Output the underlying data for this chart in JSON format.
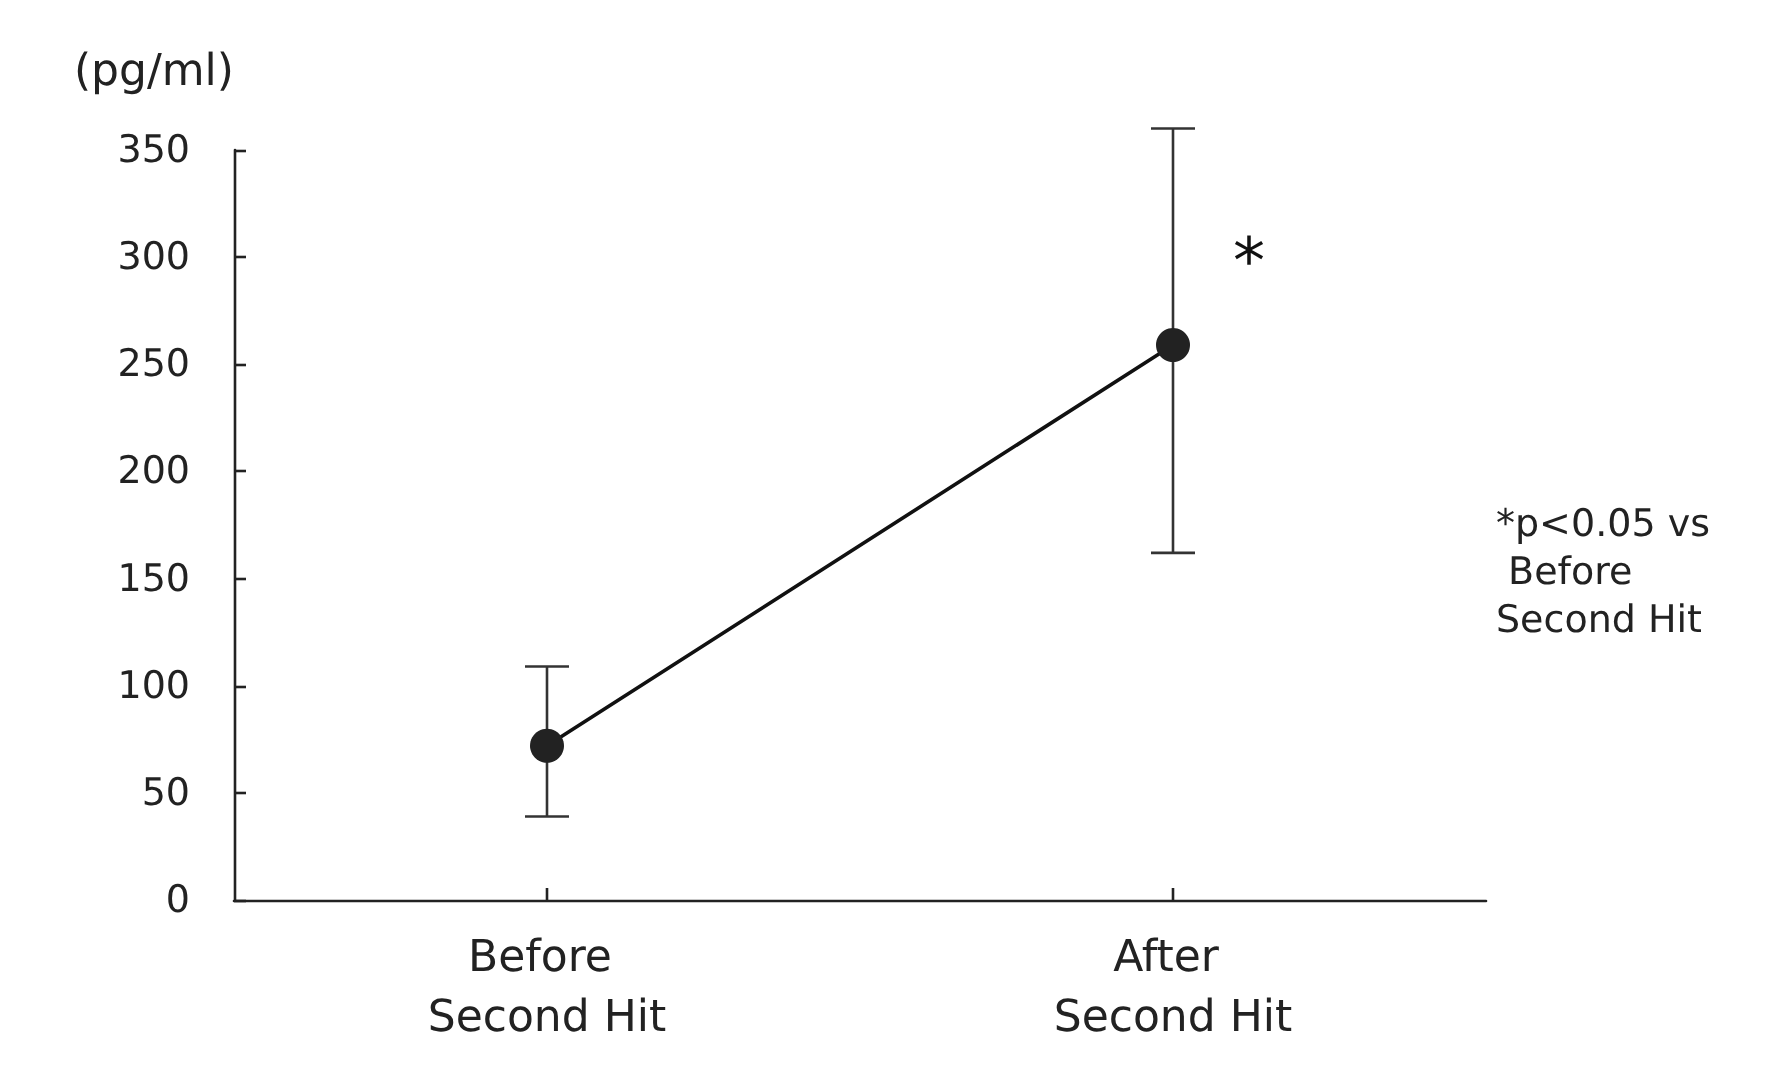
{
  "chart_data": {
    "type": "line",
    "ylabel": "(pg/ml)",
    "categories": [
      "Before Second Hit",
      "After Second Hit"
    ],
    "series": [
      {
        "color": "#222222",
        "values": [
          72,
          259
        ],
        "errors": [
          [
            39,
            109
          ],
          [
            162,
            360
          ]
        ]
      }
    ],
    "ylim": [
      0,
      350
    ],
    "yticks": [
      0,
      50,
      100,
      150,
      200,
      250,
      300,
      350
    ],
    "grid": false,
    "marker": "circle",
    "line_style": "solid",
    "annotations": [
      {
        "text": "*",
        "x": "After Second Hit",
        "y": 300
      },
      "*p<0.05 vs Before Second Hit"
    ]
  }
}
